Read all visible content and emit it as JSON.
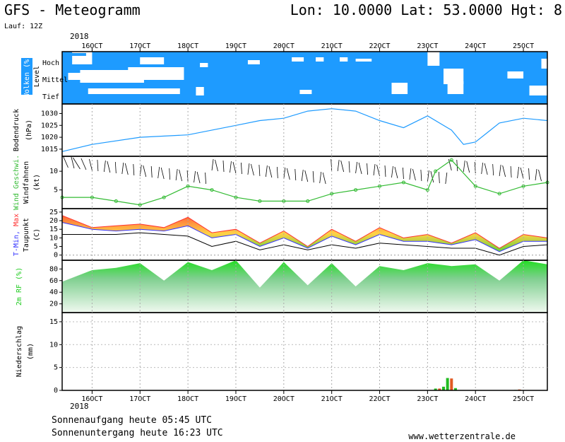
{
  "header": {
    "title": "GFS - Meteogramm",
    "coords": "Lon: 10.0000  Lat: 53.0000  Hgt: 8",
    "run": "Lauf: 12Z"
  },
  "dates": {
    "year": "2018",
    "labels": [
      "16OCT",
      "17OCT",
      "18OCT",
      "19OCT",
      "20OCT",
      "21OCT",
      "22OCT",
      "23OCT",
      "24OCT",
      "25OCT"
    ]
  },
  "panels": {
    "clouds": {
      "title": "Wolken (%)",
      "level_label": "Level",
      "levels": [
        "Hoch",
        "Mittel",
        "Tief"
      ]
    },
    "pressure": {
      "title": "Bodendruck",
      "unit": "(hPa)",
      "ticks": [
        "1015",
        "1020",
        "1025",
        "1030"
      ]
    },
    "wind": {
      "title": "Wind Geschwi.",
      "subtitle": "Windfahnen",
      "unit": "(kt)",
      "ticks": [
        "5",
        "10"
      ]
    },
    "temp": {
      "title_a": "T-Min,",
      "title_b": " Max",
      "subtitle": "Taupunkt",
      "unit": "(C)",
      "ticks": [
        "0",
        "5",
        "10",
        "15",
        "20",
        "25"
      ]
    },
    "rh": {
      "title": "2m RF (%)",
      "ticks": [
        "20",
        "40",
        "60",
        "80"
      ]
    },
    "precip": {
      "title": "Niederschlag",
      "unit": "(mm)",
      "ticks": [
        "0",
        "5",
        "10",
        "15"
      ]
    }
  },
  "footer": {
    "sunrise": "Sonnenaufgang heute 05:45 UTC",
    "sunset": "Sonnenuntergang heute 16:23 UTC",
    "site": "www.wetterzentrale.de"
  },
  "colors": {
    "cloud_bg": "#1e9bff",
    "pressure": "#1e9bff",
    "wind": "#33bb33",
    "tmax": "#ff3333",
    "tmin": "#3333ff",
    "rh": "#22cc22",
    "precip": "#22bb22"
  },
  "chart_data": {
    "type": "line",
    "x_hours_from": "16OCT 00Z",
    "x_range_hours": [
      -15,
      228
    ],
    "pressure": {
      "ylim": [
        1012,
        1034
      ],
      "x": [
        -15,
        0,
        24,
        48,
        72,
        84,
        96,
        108,
        120,
        132,
        144,
        156,
        168,
        180,
        186,
        192,
        198,
        204,
        216,
        228
      ],
      "values": [
        1014,
        1017,
        1020,
        1021,
        1025,
        1027,
        1028,
        1031,
        1032,
        1031,
        1027,
        1024,
        1029,
        1023,
        1017,
        1018,
        1022,
        1026,
        1028,
        1027
      ]
    },
    "wind_speed": {
      "ylim": [
        0,
        14
      ],
      "x": [
        -15,
        0,
        12,
        24,
        36,
        48,
        60,
        72,
        84,
        96,
        108,
        120,
        132,
        144,
        156,
        168,
        172,
        180,
        192,
        204,
        216,
        228
      ],
      "values": [
        3,
        3,
        2,
        1,
        3,
        6,
        5,
        3,
        2,
        2,
        2,
        4,
        5,
        6,
        7,
        5,
        10,
        13,
        6,
        4,
        6,
        7
      ]
    },
    "tmax": {
      "ylim": [
        -3,
        27
      ],
      "x": [
        -15,
        0,
        12,
        24,
        36,
        48,
        60,
        72,
        84,
        96,
        108,
        120,
        132,
        144,
        156,
        168,
        180,
        192,
        204,
        216,
        228
      ],
      "values": [
        23,
        16,
        17,
        18,
        16,
        22,
        13,
        15,
        7,
        14,
        5,
        15,
        8,
        16,
        10,
        12,
        7,
        13,
        4,
        12,
        10
      ]
    },
    "tmin": {
      "x": [
        -15,
        0,
        12,
        24,
        36,
        48,
        60,
        72,
        84,
        96,
        108,
        120,
        132,
        144,
        156,
        168,
        180,
        192,
        204,
        216,
        228
      ],
      "values": [
        19,
        15,
        14,
        15,
        14,
        17,
        10,
        12,
        5,
        10,
        4,
        11,
        6,
        12,
        8,
        8,
        6,
        9,
        2,
        8,
        8
      ]
    },
    "dewpoint": {
      "x": [
        -15,
        0,
        12,
        24,
        36,
        48,
        60,
        72,
        84,
        96,
        108,
        120,
        132,
        144,
        156,
        168,
        180,
        192,
        204,
        216,
        228
      ],
      "values": [
        12,
        12,
        12,
        13,
        12,
        11,
        5,
        8,
        3,
        6,
        3,
        6,
        4,
        7,
        6,
        5,
        4,
        4,
        0,
        5,
        6
      ]
    },
    "rh": {
      "ylim": [
        5,
        95
      ],
      "x": [
        -15,
        0,
        12,
        24,
        36,
        48,
        60,
        72,
        84,
        96,
        108,
        120,
        132,
        144,
        156,
        168,
        180,
        192,
        204,
        216,
        228
      ],
      "values": [
        58,
        78,
        82,
        90,
        60,
        92,
        78,
        95,
        48,
        92,
        52,
        90,
        50,
        85,
        78,
        90,
        85,
        88,
        60,
        95,
        88
      ]
    },
    "precip": {
      "ylim": [
        0,
        17
      ],
      "x": [
        172,
        174,
        176,
        178,
        180,
        182,
        212,
        214
      ],
      "values": [
        0.4,
        0.4,
        0.8,
        2.7,
        2.6,
        0.5,
        0.1,
        0.2
      ]
    }
  }
}
